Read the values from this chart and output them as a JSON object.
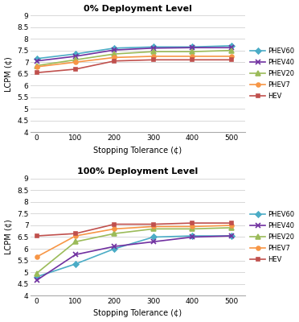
{
  "x": [
    0,
    100,
    200,
    300,
    400,
    500
  ],
  "top": {
    "title": "0% Deployment Level",
    "series": {
      "PHEV60": [
        7.15,
        7.35,
        7.6,
        7.65,
        7.65,
        7.7
      ],
      "PHEV40": [
        7.05,
        7.25,
        7.52,
        7.6,
        7.62,
        7.62
      ],
      "PHEV20": [
        6.85,
        7.1,
        7.35,
        7.45,
        7.45,
        7.5
      ],
      "PHEV7": [
        6.8,
        7.0,
        7.2,
        7.25,
        7.25,
        7.25
      ],
      "HEV": [
        6.55,
        6.7,
        7.05,
        7.1,
        7.1,
        7.1
      ]
    }
  },
  "bottom": {
    "title": "100% Deployment Level",
    "series": {
      "PHEV60": [
        4.8,
        5.35,
        6.0,
        6.5,
        6.55,
        6.55
      ],
      "PHEV40": [
        4.65,
        5.75,
        6.1,
        6.3,
        6.5,
        6.55
      ],
      "PHEV20": [
        4.95,
        6.3,
        6.65,
        6.85,
        6.85,
        6.9
      ],
      "PHEV7": [
        5.65,
        6.55,
        6.85,
        6.95,
        6.95,
        7.0
      ],
      "HEV": [
        6.55,
        6.65,
        7.05,
        7.05,
        7.1,
        7.1
      ]
    }
  },
  "colors": {
    "PHEV60": "#4bacc6",
    "PHEV40": "#7030a0",
    "PHEV20": "#9bbb59",
    "PHEV7": "#f79646",
    "HEV": "#c0504d"
  },
  "markers": {
    "PHEV60": "D",
    "PHEV40": "x",
    "PHEV20": "^",
    "PHEV7": "o",
    "HEV": "s"
  },
  "marker_sizes": {
    "PHEV60": 3.5,
    "PHEV40": 5.0,
    "PHEV20": 4.0,
    "PHEV7": 3.5,
    "HEV": 3.5
  },
  "ylim": [
    4.0,
    9.0
  ],
  "yticks": [
    4,
    4.5,
    5,
    5.5,
    6,
    6.5,
    7,
    7.5,
    8,
    8.5,
    9
  ],
  "ytick_labels": [
    "4",
    "4.5",
    "5",
    "5.5",
    "6",
    "6.5",
    "7",
    "7.5",
    "8",
    "8.5",
    "9"
  ],
  "xticks": [
    0,
    100,
    200,
    300,
    400,
    500
  ],
  "xlabel": "Stopping Tolerance (¢)",
  "ylabel": "LCPM (¢)",
  "legend_order": [
    "PHEV60",
    "PHEV40",
    "PHEV20",
    "PHEV7",
    "HEV"
  ],
  "background_color": "#ffffff",
  "grid_color": "#d8d8d8",
  "linewidth": 1.2
}
